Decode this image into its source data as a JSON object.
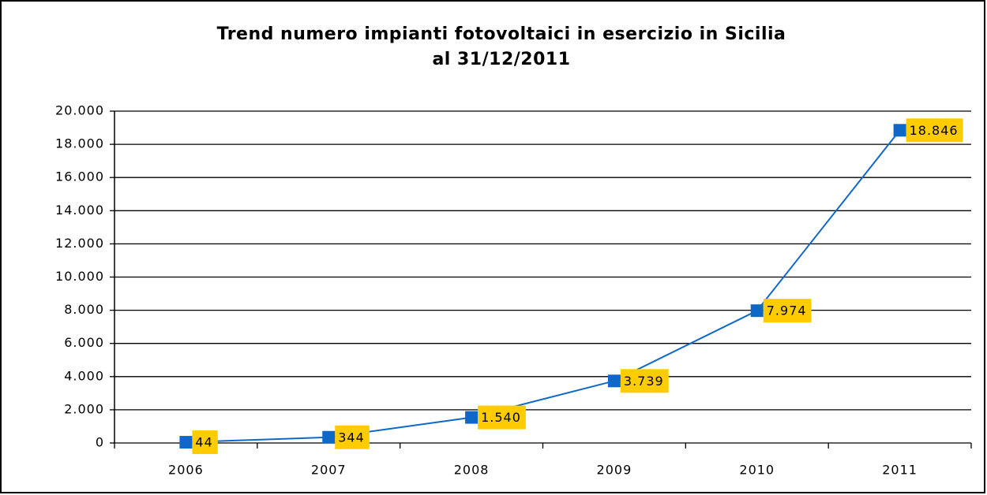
{
  "chart_data": {
    "type": "line",
    "title": [
      "Trend numero impianti fotovoltaici in esercizio in Sicilia",
      "al 31/12/2011"
    ],
    "categories": [
      "2006",
      "2007",
      "2008",
      "2009",
      "2010",
      "2011"
    ],
    "values": [
      44,
      344,
      1540,
      3739,
      7974,
      18846
    ],
    "value_labels": [
      "44",
      "344",
      "1.540",
      "3.739",
      "7.974",
      "18.846"
    ],
    "color": "#0f68c8",
    "label_background": "#ffcc00",
    "ylim": [
      0,
      20000
    ],
    "yticks": [
      0,
      {
        "value": 2000,
        "label": "2.000"
      },
      {
        "value": 4000,
        "label": "4.000"
      },
      {
        "value": 6000,
        "label": "6.000"
      },
      {
        "value": 8000,
        "label": "8.000"
      },
      {
        "value": 10000,
        "label": "10.000"
      },
      {
        "value": 12000,
        "label": "12.000"
      },
      {
        "value": 14000,
        "label": "14.000"
      },
      {
        "value": 16000,
        "label": "16.000"
      },
      {
        "value": 18000,
        "label": "18.000"
      },
      {
        "value": 20000,
        "label": "20.000"
      }
    ],
    "grid": true
  }
}
